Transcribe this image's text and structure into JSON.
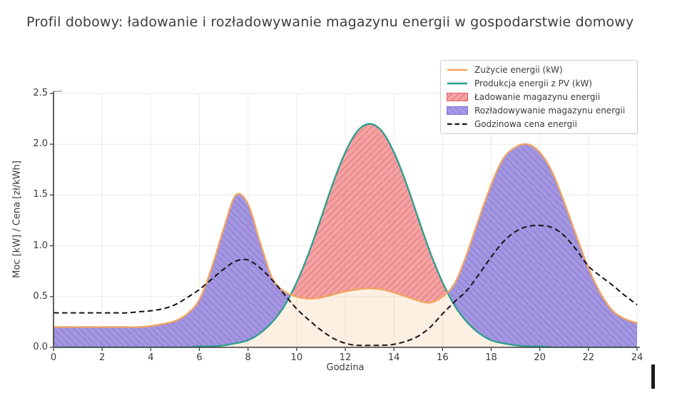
{
  "page": {
    "background": "#ffffff"
  },
  "chart_data": {
    "type": "line",
    "title": "Profil dobowy: ładowanie i rozładowywanie magazynu energii w gospodarstwie domowy",
    "xlabel": "Godzina",
    "ylabel": "Moc [kW] / Cena [zł/kWh]",
    "xlim": [
      0,
      24
    ],
    "ylim": [
      0,
      2.5
    ],
    "xticks": [
      "0",
      "2",
      "4",
      "6",
      "8",
      "10",
      "12",
      "14",
      "16",
      "18",
      "20",
      "22",
      "24"
    ],
    "yticks": [
      "0.0",
      "0.5",
      "1.0",
      "1.5",
      "2.0",
      "2.5"
    ],
    "grid": true,
    "grid_color": "#eaeaea",
    "spine_color": "#3a3a3a",
    "legend_position": "upper-right",
    "x_step": 0.5,
    "x": [
      0,
      0.5,
      1,
      1.5,
      2,
      2.5,
      3,
      3.5,
      4,
      4.5,
      5,
      5.5,
      6,
      6.5,
      7,
      7.5,
      8,
      8.5,
      9,
      9.5,
      10,
      10.5,
      11,
      11.5,
      12,
      12.5,
      13,
      13.5,
      14,
      14.5,
      15,
      15.5,
      16,
      16.5,
      17,
      17.5,
      18,
      18.5,
      19,
      19.5,
      20,
      20.5,
      21,
      21.5,
      22,
      22.5,
      23,
      23.5,
      24
    ],
    "series": [
      {
        "name": "Zużycie energii (kW)",
        "kind": "line",
        "color": "#F2A45F",
        "fill_under": "rgba(244,164,96,0.18)",
        "width": 2.3,
        "values": [
          0.2,
          0.2,
          0.2,
          0.2,
          0.2,
          0.2,
          0.2,
          0.2,
          0.21,
          0.23,
          0.26,
          0.33,
          0.47,
          0.78,
          1.17,
          1.5,
          1.41,
          1.03,
          0.68,
          0.55,
          0.5,
          0.48,
          0.49,
          0.52,
          0.55,
          0.57,
          0.58,
          0.57,
          0.54,
          0.5,
          0.46,
          0.44,
          0.5,
          0.63,
          0.92,
          1.27,
          1.6,
          1.86,
          1.97,
          2.0,
          1.92,
          1.73,
          1.43,
          1.1,
          0.78,
          0.53,
          0.36,
          0.28,
          0.24
        ]
      },
      {
        "name": "Produkcja energii z PV (kW)",
        "kind": "line",
        "color": "#2A9D8F",
        "width": 2.3,
        "values": [
          0,
          0,
          0,
          0,
          0,
          0,
          0,
          0,
          0,
          0,
          0,
          0,
          0.01,
          0.01,
          0.02,
          0.04,
          0.07,
          0.14,
          0.25,
          0.41,
          0.64,
          0.93,
          1.27,
          1.62,
          1.92,
          2.13,
          2.2,
          2.13,
          1.92,
          1.62,
          1.27,
          0.93,
          0.64,
          0.41,
          0.25,
          0.14,
          0.07,
          0.04,
          0.02,
          0.01,
          0.01,
          0,
          0,
          0,
          0,
          0,
          0,
          0,
          0
        ]
      },
      {
        "name": "Ładowanie magazynu energii",
        "kind": "band",
        "upper": 1,
        "lower": 0,
        "fill": "rgba(240,128,128,0.72)",
        "hatch": "forward",
        "hatch_color": "#E0606A"
      },
      {
        "name": "Rozładowywanie magazynu energii",
        "kind": "band",
        "upper": 0,
        "lower": 1,
        "fill": "rgba(134,120,222,0.75)",
        "hatch": "backward",
        "hatch_color": "#7E6FD6"
      },
      {
        "name": "Godzinowa cena energii",
        "kind": "line",
        "style": "dashed",
        "color": "#141414",
        "width": 2,
        "values": [
          0.34,
          0.34,
          0.34,
          0.34,
          0.34,
          0.34,
          0.34,
          0.35,
          0.36,
          0.38,
          0.42,
          0.49,
          0.57,
          0.67,
          0.77,
          0.85,
          0.86,
          0.78,
          0.66,
          0.52,
          0.38,
          0.27,
          0.17,
          0.09,
          0.04,
          0.02,
          0.02,
          0.02,
          0.03,
          0.06,
          0.11,
          0.2,
          0.33,
          0.45,
          0.56,
          0.72,
          0.89,
          1.04,
          1.14,
          1.19,
          1.2,
          1.18,
          1.1,
          0.96,
          0.8,
          0.7,
          0.61,
          0.51,
          0.42
        ]
      }
    ]
  },
  "annotations": {
    "caret": "|"
  }
}
